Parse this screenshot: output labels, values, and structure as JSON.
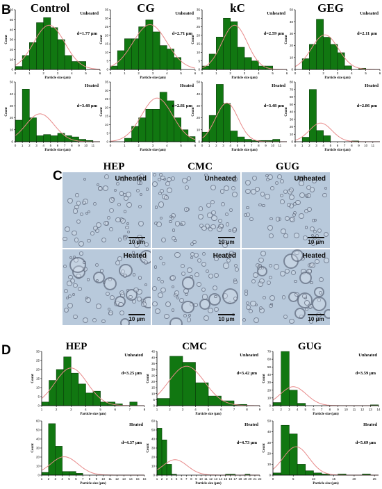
{
  "section_letters": {
    "b": "B",
    "c": "C",
    "d": "D"
  },
  "labels": {
    "unheated": "Unheated",
    "heated": "Heated",
    "xlabel": "Particle size (μm)",
    "ylabel": "Count",
    "scale_bar": "10 μm"
  },
  "colors": {
    "bar": "#117711",
    "bar_edge": "#0a3d0a",
    "curve": "#e88a8a",
    "photo_bg": "#b8c9db"
  },
  "column_titles_b": [
    "Control",
    "CG",
    "kC",
    "GEG"
  ],
  "column_titles_c": [
    "HEP",
    "CMC",
    "GUG"
  ],
  "column_titles_d": [
    "HEP",
    "CMC",
    "GUG"
  ],
  "chart_data": [
    {
      "id": "b-control-unheated",
      "type": "bar",
      "bin_start": 0,
      "bin_width": 0.5,
      "values": [
        3,
        14,
        27,
        47,
        52,
        42,
        30,
        14,
        8,
        8,
        0,
        0
      ],
      "d_label": "d=1.77 μm",
      "xlim": [
        0,
        6
      ],
      "ylim": [
        0,
        60
      ],
      "xticks": [
        0,
        1,
        2,
        3,
        4,
        5,
        6
      ],
      "yticks": [
        0,
        10,
        20,
        30,
        40,
        50,
        60
      ],
      "curve": {
        "mean": 2.4,
        "sd": 1.1
      }
    },
    {
      "id": "b-cg-unheated",
      "type": "bar",
      "bin_start": 0,
      "bin_width": 0.5,
      "values": [
        2,
        11,
        18,
        18,
        25,
        29,
        22,
        14,
        12,
        7,
        0,
        0
      ],
      "d_label": "d=2.71 μm",
      "xlim": [
        0,
        6
      ],
      "ylim": [
        0,
        35
      ],
      "xticks": [
        0,
        1,
        2,
        3,
        4,
        5,
        6
      ],
      "yticks": [
        0,
        5,
        10,
        15,
        20,
        25,
        30,
        35
      ],
      "curve": {
        "mean": 2.8,
        "sd": 1.2
      }
    },
    {
      "id": "b-kc-unheated",
      "type": "bar",
      "bin_start": 0,
      "bin_width": 0.5,
      "values": [
        2,
        9,
        19,
        30,
        28,
        13,
        7,
        5,
        2,
        2,
        0,
        0
      ],
      "d_label": "d=2.59 μm",
      "xlim": [
        0,
        6
      ],
      "ylim": [
        0,
        35
      ],
      "xticks": [
        0,
        1,
        2,
        3,
        4,
        5,
        6
      ],
      "yticks": [
        0,
        5,
        10,
        15,
        20,
        25,
        30,
        35
      ],
      "curve": {
        "mean": 2.3,
        "sd": 0.9
      }
    },
    {
      "id": "b-geg-unheated",
      "type": "bar",
      "bin_start": 0,
      "bin_width": 0.5,
      "values": [
        0,
        9,
        21,
        42,
        27,
        21,
        14,
        3,
        0,
        1,
        0,
        0
      ],
      "d_label": "d=2.11 μm",
      "xlim": [
        0,
        6
      ],
      "ylim": [
        0,
        50
      ],
      "xticks": [
        0,
        1,
        2,
        3,
        4,
        5,
        6
      ],
      "yticks": [
        0,
        10,
        20,
        30,
        40,
        50
      ],
      "curve": {
        "mean": 2.1,
        "sd": 0.95
      }
    },
    {
      "id": "b-control-heated",
      "type": "bar",
      "bin_start": 0,
      "bin_width": 1,
      "values": [
        18,
        44,
        20,
        5,
        6,
        5,
        7,
        5,
        4,
        2,
        1,
        0
      ],
      "d_label": "d=3.48 μm",
      "xlim": [
        0,
        12
      ],
      "ylim": [
        0,
        50
      ],
      "xticks": [
        0,
        1,
        2,
        3,
        4,
        5,
        6,
        7,
        8,
        9,
        10,
        11
      ],
      "yticks": [
        0,
        10,
        20,
        30,
        40,
        50
      ],
      "curve": {
        "mean": 3.5,
        "sd": 2.0
      }
    },
    {
      "id": "b-cg-heated",
      "type": "bar",
      "bin_start": 1,
      "bin_width": 0.5,
      "values": [
        2,
        9,
        14,
        19,
        19,
        29,
        24,
        14,
        7,
        3,
        1,
        0
      ],
      "d_label": "d=2.81 μm",
      "xlim": [
        0,
        6
      ],
      "ylim": [
        0,
        35
      ],
      "xticks": [
        0,
        1,
        2,
        3,
        4,
        5,
        6
      ],
      "yticks": [
        0,
        5,
        10,
        15,
        20,
        25,
        30,
        35
      ],
      "curve": {
        "mean": 3.3,
        "sd": 1.1
      }
    },
    {
      "id": "b-kc-heated",
      "type": "bar",
      "bin_start": 0,
      "bin_width": 1,
      "values": [
        8,
        22,
        48,
        32,
        9,
        4,
        2,
        1,
        1,
        1,
        2,
        0
      ],
      "d_label": "d=3.48 μm",
      "xlim": [
        0,
        12
      ],
      "ylim": [
        0,
        50
      ],
      "xticks": [
        0,
        1,
        2,
        3,
        4,
        5,
        6,
        7,
        8,
        9,
        10,
        11
      ],
      "yticks": [
        0,
        10,
        20,
        30,
        40,
        50
      ],
      "curve": {
        "mean": 3.5,
        "sd": 1.6
      }
    },
    {
      "id": "b-geg-heated",
      "type": "bar",
      "bin_start": 0,
      "bin_width": 1,
      "values": [
        0,
        6,
        70,
        15,
        8,
        0,
        0,
        0,
        1,
        0,
        0,
        0
      ],
      "d_label": "d=2.86 μm",
      "xlim": [
        0,
        12
      ],
      "ylim": [
        0,
        80
      ],
      "xticks": [
        0,
        1,
        2,
        3,
        4,
        5,
        6,
        7,
        8,
        9,
        10,
        11
      ],
      "yticks": [
        0,
        10,
        20,
        30,
        40,
        50,
        60,
        70,
        80
      ],
      "curve": {
        "mean": 3.6,
        "sd": 1.6
      }
    },
    {
      "id": "d-hep-unheated",
      "type": "bar",
      "bin_start": 1,
      "bin_width": 0.5,
      "values": [
        2,
        14,
        20,
        27,
        18,
        12,
        7,
        8,
        2,
        2,
        1,
        0,
        2
      ],
      "d_label": "d=3.25 μm",
      "xlim": [
        1,
        8
      ],
      "ylim": [
        0,
        30
      ],
      "xticks": [
        1,
        2,
        3,
        4,
        5,
        6,
        7,
        8
      ],
      "yticks": [
        0,
        5,
        10,
        15,
        20,
        25,
        30
      ],
      "curve": {
        "mean": 3.0,
        "sd": 1.1
      }
    },
    {
      "id": "d-cmc-unheated",
      "type": "bar",
      "bin_start": 1,
      "bin_width": 1,
      "values": [
        6,
        41,
        36,
        19,
        8,
        4,
        1,
        0
      ],
      "d_label": "d=3.42 μm",
      "xlim": [
        1,
        9
      ],
      "ylim": [
        0,
        45
      ],
      "xticks": [
        1,
        2,
        3,
        4,
        5,
        6,
        7,
        8,
        9
      ],
      "yticks": [
        0,
        5,
        10,
        15,
        20,
        25,
        30,
        35,
        40,
        45
      ],
      "curve": {
        "mean": 3.3,
        "sd": 1.4
      }
    },
    {
      "id": "d-gug-unheated",
      "type": "bar",
      "bin_start": 1,
      "bin_width": 1,
      "values": [
        4,
        70,
        20,
        3,
        0,
        0,
        0,
        0,
        0,
        0,
        0,
        0,
        1
      ],
      "d_label": "d=3.59 μm",
      "xlim": [
        1,
        14
      ],
      "ylim": [
        0,
        70
      ],
      "xticks": [
        1,
        2,
        3,
        4,
        5,
        6,
        7,
        8,
        9,
        10,
        11,
        12,
        13,
        14
      ],
      "yticks": [
        0,
        10,
        20,
        30,
        40,
        50,
        60,
        70
      ],
      "curve": {
        "mean": 3.5,
        "sd": 1.6
      }
    },
    {
      "id": "d-hep-heated",
      "type": "bar",
      "bin_start": 1,
      "bin_width": 1,
      "values": [
        3,
        57,
        32,
        4,
        4,
        2,
        0,
        0,
        0,
        0,
        0,
        0,
        0,
        0,
        0
      ],
      "d_label": "d=4.37 μm",
      "xlim": [
        1,
        16
      ],
      "ylim": [
        0,
        60
      ],
      "xticks": [
        1,
        2,
        3,
        4,
        5,
        6,
        7,
        8,
        9,
        10,
        11,
        12,
        13,
        14,
        15,
        16
      ],
      "yticks": [
        0,
        10,
        20,
        30,
        40,
        50,
        60
      ],
      "curve": {
        "mean": 4.3,
        "sd": 2.0
      }
    },
    {
      "id": "d-cmc-heated",
      "type": "bar",
      "bin_start": 1,
      "bin_width": 1,
      "values": [
        52,
        39,
        12,
        1,
        0,
        0,
        0,
        0,
        0,
        0,
        0,
        0,
        0,
        0,
        1,
        1,
        0,
        0,
        1,
        0,
        0
      ],
      "d_label": "d=4.73 μm",
      "xlim": [
        1,
        22
      ],
      "ylim": [
        0,
        60
      ],
      "xticks": [
        1,
        2,
        3,
        4,
        5,
        6,
        7,
        8,
        9,
        10,
        11,
        12,
        13,
        14,
        15,
        16,
        17,
        18,
        19,
        20,
        21,
        22
      ],
      "yticks": [
        0,
        10,
        20,
        30,
        40,
        50,
        60
      ],
      "curve": {
        "mean": 4.7,
        "sd": 2.5
      }
    },
    {
      "id": "d-gug-heated",
      "type": "bar",
      "bin_start": 0,
      "bin_width": 2,
      "values": [
        2,
        46,
        38,
        10,
        4,
        2,
        1,
        0,
        1,
        0,
        0,
        1,
        0
      ],
      "d_label": "d=5.69 μm",
      "xlim": [
        0,
        26
      ],
      "ylim": [
        0,
        50
      ],
      "xticks": [
        0,
        5,
        10,
        15,
        20,
        25
      ],
      "yticks": [
        0,
        10,
        20,
        30,
        40,
        50
      ],
      "curve": {
        "mean": 5.7,
        "sd": 3.2
      }
    }
  ]
}
